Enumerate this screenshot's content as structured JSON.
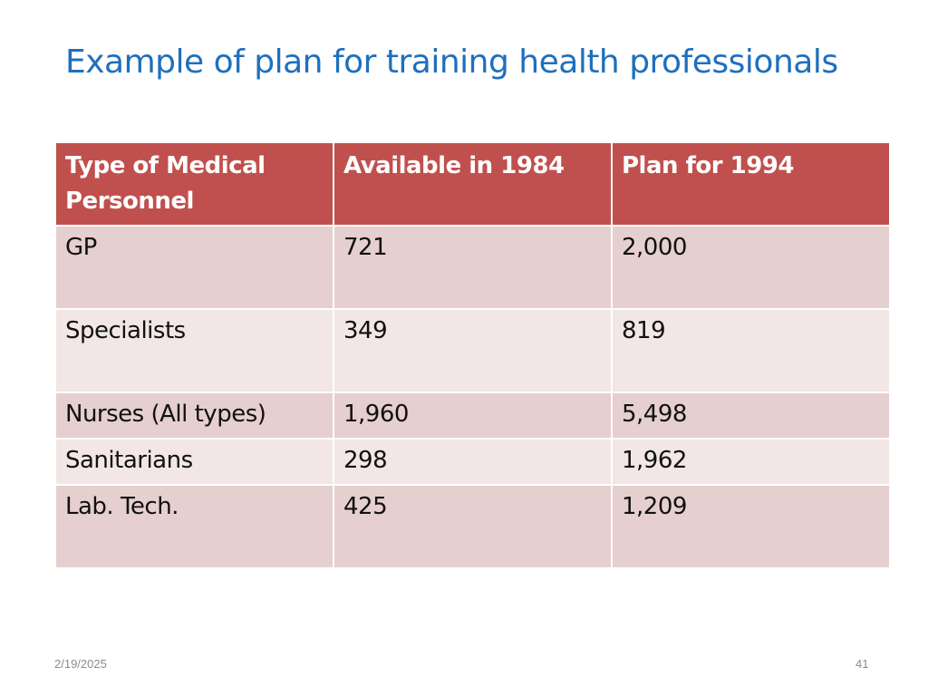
{
  "slide": {
    "title": "Example of plan for training health professionals",
    "date": "2/19/2025",
    "page_number": "41"
  },
  "table": {
    "headers": [
      "Type of Medical Personnel",
      "Available in 1984",
      "Plan for 1994"
    ],
    "rows": [
      [
        "GP",
        "721",
        "2,000"
      ],
      [
        "Specialists",
        "349",
        "819"
      ],
      [
        "Nurses (All types)",
        "1,960",
        "5,498"
      ],
      [
        "Sanitarians",
        "298",
        "1,962"
      ],
      [
        "Lab. Tech.",
        "425",
        "1,209"
      ]
    ]
  },
  "colors": {
    "title": "#1f6fbd",
    "header_bg": "#c0504d",
    "row_odd_bg": "#e6cfcf",
    "row_even_bg": "#f2e6e6"
  }
}
